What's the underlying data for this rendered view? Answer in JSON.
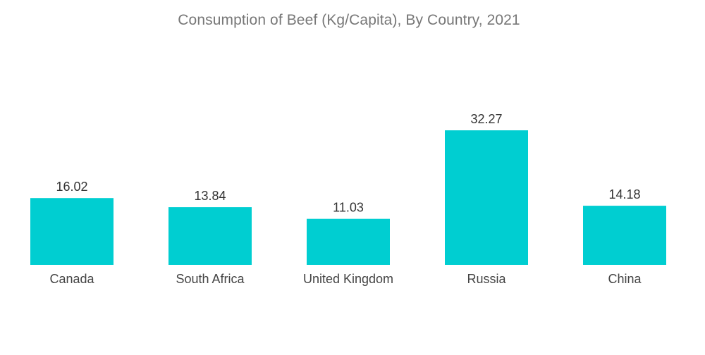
{
  "chart_data": {
    "type": "bar",
    "title": "Consumption of Beef (Kg/Capita), By Country, 2021",
    "categories": [
      "Canada",
      "South Africa",
      "United Kingdom",
      "Russia",
      "China"
    ],
    "values": [
      16.02,
      13.84,
      11.03,
      32.27,
      14.18
    ],
    "value_labels": [
      "16.02",
      "13.84",
      "11.03",
      "32.27",
      "14.18"
    ],
    "xlabel": "",
    "ylabel": "",
    "ylim": [
      0,
      32.27
    ],
    "grid": false,
    "legend": "none",
    "bar_color": "#00CED1"
  }
}
